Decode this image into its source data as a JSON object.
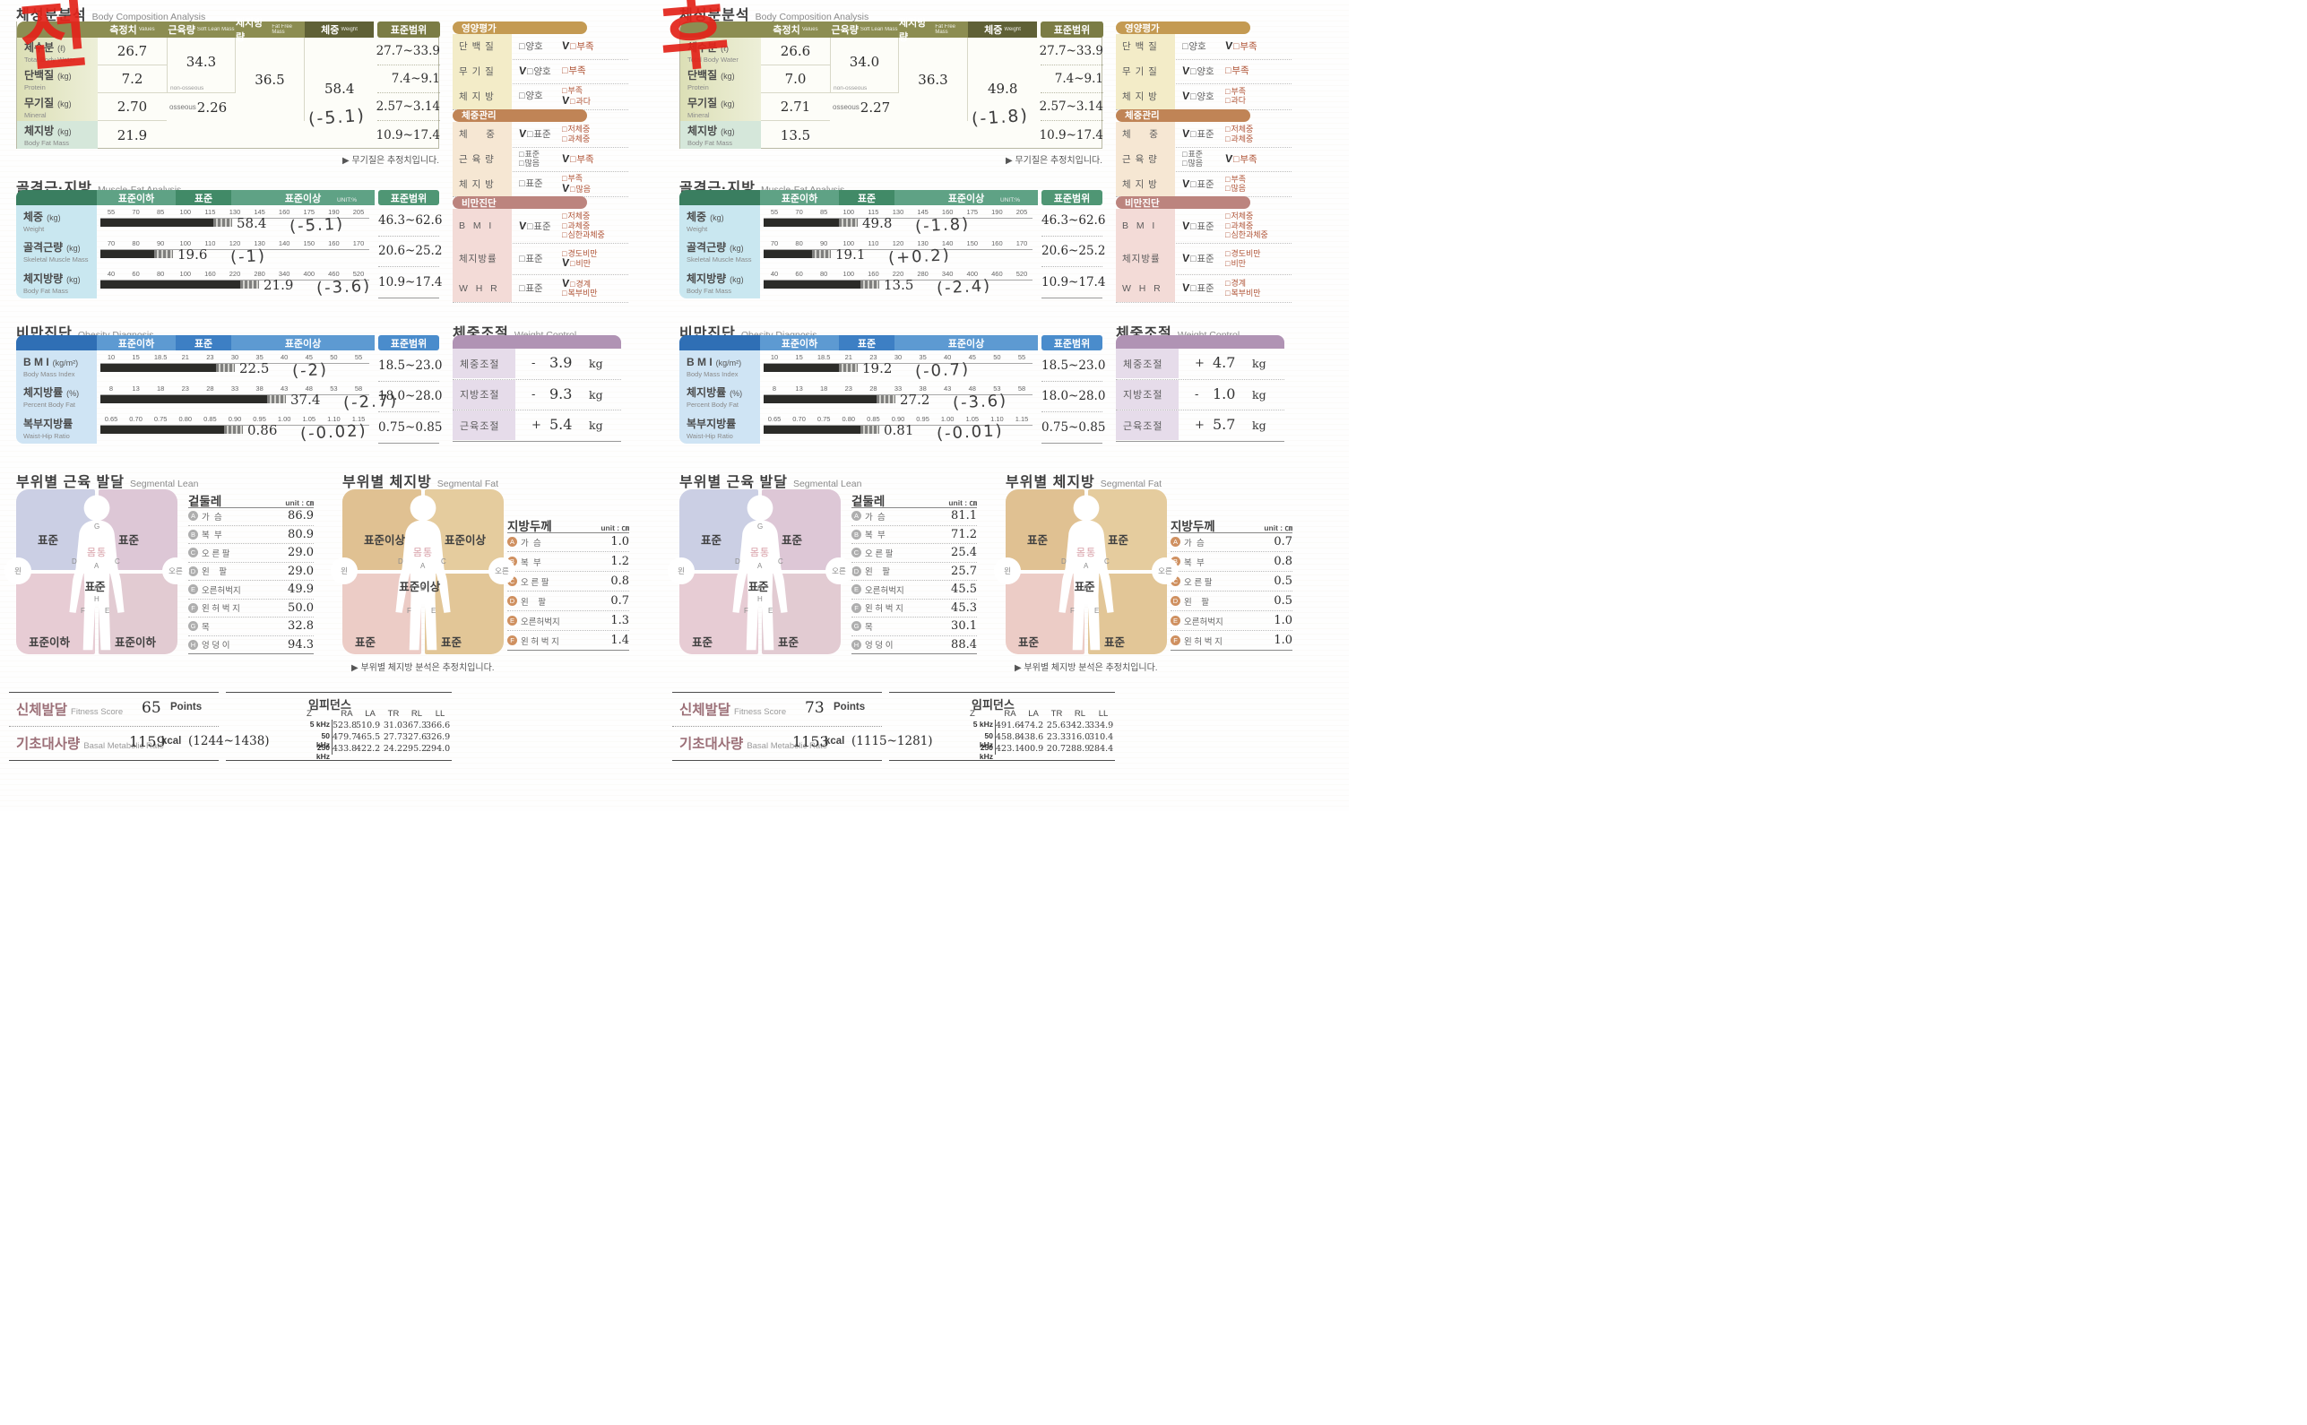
{
  "document_title": "InBody body composition result sheets (before / after scan)",
  "colors": {
    "red_marker": "#e3231a",
    "olive_header": "#8c8d52",
    "olive_weight_header": "#5f6036",
    "olive_range_header": "#7b7c45",
    "green_block": "#3a7e60",
    "green_band": "#5fa285",
    "green_band_dark": "#418a67",
    "green_range": "#4f9674",
    "blue_block": "#2f6fb5",
    "blue_band": "#5d9ad2",
    "blue_band_dark": "#3d7fc4",
    "blue_range": "#4a8ccc",
    "cyan_label": "#c9e7f0",
    "blue_label": "#cfe4f4",
    "tan_header": "#c49a52",
    "tan_row": "#f3ecc8",
    "brown_header": "#c08456",
    "brown_row": "#f6e7d3",
    "mauve_header": "#bc847e",
    "mauve_row": "#f3dbd7",
    "purple_header": "#b093b4",
    "purple_row": "#e6dcea",
    "option_red": "#b05538",
    "bar": "#2b2b28",
    "lean_tl": "#cbcfe4",
    "lean_tr": "#ddc7d6",
    "lean_bl": "#e7ccd4",
    "lean_br": "#e2cbd2",
    "fat_tl": "#e0c192",
    "fat_tr": "#e5cc9e",
    "fat_bl": "#ecccc6",
    "fat_br": "#e2c697"
  },
  "shared": {
    "body_comp": {
      "title_ko": "체성분분석",
      "title_en": "Body Composition Analysis",
      "headers": {
        "values_ko": "측정치",
        "values_en": "Values",
        "slm_ko": "근육량",
        "slm_en": "Soft Lean Mass",
        "ffm_ko": "제지방량",
        "ffm_en": "Fat Free Mass",
        "weight_ko": "체중",
        "weight_en": "Weight",
        "range": "표준범위"
      },
      "rows": [
        {
          "ko": "체수분",
          "unit": "(ℓ)",
          "en": "Total Body Water",
          "range": "27.7~33.9"
        },
        {
          "ko": "단백질",
          "unit": "(kg)",
          "en": "Protein",
          "range": "7.4~9.1"
        },
        {
          "ko": "무기질",
          "unit": "(kg)",
          "en": "Mineral",
          "range": "2.57~3.14"
        },
        {
          "ko": "체지방",
          "unit": "(kg)",
          "en": "Body Fat Mass",
          "range": "10.9~17.4"
        }
      ],
      "non_osseous": "non-osseous",
      "osseous": "osseous",
      "footnote": "▶ 무기질은 추정치입니다."
    },
    "muscle_fat": {
      "title_ko": "골격근·지방",
      "title_en": "Muscle-Fat Analysis",
      "bands": [
        "표준이하",
        "표준",
        "표준이상"
      ],
      "unit_note": "UNIT:%",
      "range_header": "표준범위",
      "rows": [
        {
          "ko": "체중",
          "unit": "(kg)",
          "en": "Weight",
          "ticks": [
            "55",
            "70",
            "85",
            "100",
            "115",
            "130",
            "145",
            "160",
            "175",
            "190",
            "205"
          ],
          "range": "46.3~62.6"
        },
        {
          "ko": "골격근량",
          "unit": "(kg)",
          "en": "Skeletal Muscle Mass",
          "ticks": [
            "70",
            "80",
            "90",
            "100",
            "110",
            "120",
            "130",
            "140",
            "150",
            "160",
            "170"
          ],
          "range": "20.6~25.2"
        },
        {
          "ko": "체지방량",
          "unit": "(kg)",
          "en": "Body Fat Mass",
          "ticks": [
            "40",
            "60",
            "80",
            "100",
            "160",
            "220",
            "280",
            "340",
            "400",
            "460",
            "520"
          ],
          "range": "10.9~17.4"
        }
      ]
    },
    "obesity": {
      "title_ko": "비만진단",
      "title_en": "Obesity Diagnosis",
      "bands": [
        "표준이하",
        "표준",
        "표준이상"
      ],
      "range_header": "표준범위",
      "rows": [
        {
          "ko": "B M I",
          "unit": "(kg/m²)",
          "en": "Body Mass Index",
          "ticks": [
            "10",
            "15",
            "18.5",
            "21",
            "23",
            "30",
            "35",
            "40",
            "45",
            "50",
            "55"
          ],
          "range": "18.5~23.0"
        },
        {
          "ko": "체지방률",
          "unit": "(%)",
          "en": "Percent Body Fat",
          "ticks": [
            "8",
            "13",
            "18",
            "23",
            "28",
            "33",
            "38",
            "43",
            "48",
            "53",
            "58"
          ],
          "range": "18.0~28.0"
        },
        {
          "ko": "복부지방률",
          "unit": "",
          "en": "Waist-Hip Ratio",
          "ticks": [
            "0.65",
            "0.70",
            "0.75",
            "0.80",
            "0.85",
            "0.90",
            "0.95",
            "1.00",
            "1.05",
            "1.10",
            "1.15"
          ],
          "range": "0.75~0.85"
        }
      ]
    },
    "nutrition": {
      "groups": [
        {
          "header": "영양평가",
          "theme": "tan",
          "rows": [
            {
              "label": "단 백 질",
              "cols": [
                [
                  "양호"
                ],
                [
                  "부족"
                ]
              ]
            },
            {
              "label": "무 기 질",
              "cols": [
                [
                  "양호"
                ],
                [
                  "부족"
                ]
              ]
            },
            {
              "label": "체 지 방",
              "cols": [
                [
                  "양호"
                ],
                [
                  "부족",
                  "과다"
                ]
              ]
            }
          ]
        },
        {
          "header": "체중관리",
          "theme": "brown",
          "rows": [
            {
              "label": "체     중",
              "cols": [
                [
                  "표준"
                ],
                [
                  "저체중",
                  "과체중"
                ]
              ]
            },
            {
              "label": "근 육 량",
              "cols": [
                [
                  "표준",
                  "많음"
                ],
                [
                  "부족"
                ]
              ]
            },
            {
              "label": "체 지 방",
              "cols": [
                [
                  "표준"
                ],
                [
                  "부족",
                  "많음"
                ]
              ]
            }
          ]
        },
        {
          "header": "비만진단",
          "theme": "mauve",
          "rows": [
            {
              "label": "B  M  I",
              "cols": [
                [
                  "표준"
                ],
                [
                  "저체중",
                  "과체중",
                  "심한과체중"
                ]
              ]
            },
            {
              "label": "체지방률",
              "cols": [
                [
                  "표준"
                ],
                [
                  "경도비만",
                  "비만"
                ]
              ]
            },
            {
              "label": "W  H  R",
              "cols": [
                [
                  "표준"
                ],
                [
                  "경계",
                  "복부비만"
                ]
              ]
            }
          ]
        }
      ]
    },
    "weight_control": {
      "title_ko": "체중조절",
      "title_en": "Weight Control",
      "row_labels": [
        "체중조절",
        "지방조절",
        "근육조절"
      ],
      "unit": "kg"
    },
    "seg_lean": {
      "title_ko": "부위별 근육 발달",
      "title_en": "Segmental Lean",
      "list_title": "겉둘레",
      "unit_note": "unit : ㎝",
      "letters": [
        "A",
        "B",
        "C",
        "D",
        "E",
        "F",
        "G",
        "H"
      ],
      "items": [
        "가  슴",
        "복  부",
        "오 른 팔",
        "왼    팔",
        "오른허벅지",
        "왼 허 벅 지",
        "목",
        "엉 덩 이"
      ],
      "side_left": "왼",
      "side_right": "오른",
      "torso": "몸통"
    },
    "seg_fat": {
      "title_ko": "부위별 체지방",
      "title_en": "Segmental Fat",
      "list_title": "지방두께",
      "unit_note": "unit : ㎝",
      "letters": [
        "A",
        "B",
        "C",
        "D",
        "E",
        "F"
      ],
      "items": [
        "가  슴",
        "복  부",
        "오 른 팔",
        "왼    팔",
        "오른허벅지",
        "왼 허 벅 지"
      ],
      "side_left": "왼",
      "side_right": "오른",
      "torso": "몸통",
      "footnote": "▶ 부위별 체지방 분석은 추정치입니다."
    },
    "fitness": {
      "ko": "신체발달",
      "en": "Fitness Score",
      "points": "Points"
    },
    "bmr": {
      "ko": "기초대사량",
      "en": "Basal Metabolic Rate",
      "unit": "kcal"
    },
    "impedance": {
      "title": "임피던스",
      "z": "Z",
      "cols": [
        "RA",
        "LA",
        "TR",
        "RL",
        "LL"
      ],
      "freqs": [
        "5 kHz",
        "50 kHz",
        "250 kHz"
      ]
    }
  },
  "reports": [
    {
      "tag": "전",
      "body_comp": {
        "values": [
          "26.7",
          "7.2",
          "2.70",
          "21.9"
        ],
        "slm": "34.3",
        "osseous_value": "2.26",
        "ffm": "36.5",
        "weight": "58.4",
        "weight_note": "(-5.1)"
      },
      "muscle_fat": [
        {
          "value": "58.4",
          "bar_pct": 42,
          "note": "(-5.1)"
        },
        {
          "value": "19.6",
          "bar_pct": 20,
          "note": "(-1)"
        },
        {
          "value": "21.9",
          "bar_pct": 52,
          "note": "(-3.6)"
        }
      ],
      "obesity": [
        {
          "value": "22.5",
          "bar_pct": 43,
          "note": "(-2)"
        },
        {
          "value": "37.4",
          "bar_pct": 62,
          "note": "(-2.7)"
        },
        {
          "value": "0.86",
          "bar_pct": 46,
          "note": "(-0.02)"
        }
      ],
      "nutrition_checks": [
        [
          1,
          0
        ],
        [
          0,
          0
        ],
        [
          1,
          1
        ],
        [
          0,
          0
        ],
        [
          1,
          0
        ],
        [
          1,
          1
        ],
        [
          0,
          0
        ],
        [
          1,
          1
        ],
        [
          1,
          0
        ]
      ],
      "weight_control": [
        {
          "sign": "-",
          "value": "3.9"
        },
        {
          "sign": "-",
          "value": "9.3"
        },
        {
          "sign": "+",
          "value": "5.4"
        }
      ],
      "seg_lean": {
        "quads": [
          "표준",
          "표준",
          "표준이하",
          "표준이하"
        ],
        "center": "표준",
        "values": [
          "86.9",
          "80.9",
          "29.0",
          "29.0",
          "49.9",
          "50.0",
          "32.8",
          "94.3"
        ]
      },
      "seg_fat": {
        "quads": [
          "표준이상",
          "표준이상",
          "표준",
          "표준"
        ],
        "center": "표준이상",
        "values": [
          "1.0",
          "1.2",
          "0.8",
          "0.7",
          "1.3",
          "1.4"
        ]
      },
      "fitness_score": "65",
      "bmr_value": "1159",
      "bmr_range": "(1244~1438)",
      "impedance": [
        [
          "523.8",
          "510.9",
          "31.0",
          "367.3",
          "366.6"
        ],
        [
          "479.7",
          "465.5",
          "27.7",
          "327.6",
          "326.9"
        ],
        [
          "433.8",
          "422.2",
          "24.2",
          "295.2",
          "294.0"
        ]
      ]
    },
    {
      "tag": "후",
      "body_comp": {
        "values": [
          "26.6",
          "7.0",
          "2.71",
          "13.5"
        ],
        "slm": "34.0",
        "osseous_value": "2.27",
        "ffm": "36.3",
        "weight": "49.8",
        "weight_note": "(-1.8)"
      },
      "muscle_fat": [
        {
          "value": "49.8",
          "bar_pct": 28,
          "note": "(-1.8)"
        },
        {
          "value": "19.1",
          "bar_pct": 18,
          "note": "(+0.2)"
        },
        {
          "value": "13.5",
          "bar_pct": 36,
          "note": "(-2.4)"
        }
      ],
      "obesity": [
        {
          "value": "19.2",
          "bar_pct": 28,
          "note": "(-0.7)"
        },
        {
          "value": "27.2",
          "bar_pct": 42,
          "note": "(-3.6)"
        },
        {
          "value": "0.81",
          "bar_pct": 36,
          "note": "(-0.01)"
        }
      ],
      "nutrition_checks": [
        [
          1,
          0
        ],
        [
          0,
          0
        ],
        [
          0,
          0
        ],
        [
          0,
          0
        ],
        [
          1,
          0
        ],
        [
          0,
          0
        ],
        [
          0,
          0
        ],
        [
          0,
          0
        ],
        [
          0,
          0
        ]
      ],
      "weight_control": [
        {
          "sign": "+",
          "value": "4.7"
        },
        {
          "sign": "-",
          "value": "1.0"
        },
        {
          "sign": "+",
          "value": "5.7"
        }
      ],
      "seg_lean": {
        "quads": [
          "표준",
          "표준",
          "표준",
          "표준"
        ],
        "center": "표준",
        "values": [
          "81.1",
          "71.2",
          "25.4",
          "25.7",
          "45.5",
          "45.3",
          "30.1",
          "88.4"
        ]
      },
      "seg_fat": {
        "quads": [
          "표준",
          "표준",
          "표준",
          "표준"
        ],
        "center": "표준",
        "values": [
          "0.7",
          "0.8",
          "0.5",
          "0.5",
          "1.0",
          "1.0"
        ]
      },
      "fitness_score": "73",
      "bmr_value": "1153",
      "bmr_range": "(1115~1281)",
      "impedance": [
        [
          "491.6",
          "474.2",
          "25.6",
          "342.3",
          "334.9"
        ],
        [
          "458.8",
          "438.6",
          "23.3",
          "316.0",
          "310.4"
        ],
        [
          "423.1",
          "400.9",
          "20.7",
          "288.9",
          "284.4"
        ]
      ]
    }
  ]
}
